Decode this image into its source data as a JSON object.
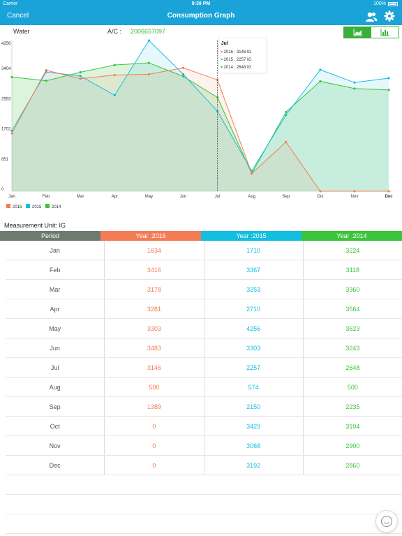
{
  "status": {
    "carrier": "Carrier",
    "time": "9:39 PM",
    "battery": "100%"
  },
  "nav": {
    "cancel": "Cancel",
    "title": "Consumption Graph"
  },
  "info": {
    "kind": "Water",
    "ac_label": "A/C :",
    "ac_value": "2006657097"
  },
  "colors": {
    "nav": "#1aa3d9",
    "y2016": "#f47c54",
    "y2015": "#13bfe0",
    "y2014": "#3cc43c",
    "period": "#6f7a6f"
  },
  "chart_data": {
    "type": "area",
    "categories": [
      "Jan",
      "Feb",
      "Mar",
      "Apr",
      "May",
      "Jun",
      "Jul",
      "Aug",
      "Sep",
      "Oct",
      "Nov",
      "Dec"
    ],
    "yticks": [
      "0",
      "851",
      "1702",
      "2553",
      "3404",
      "4256"
    ],
    "ylim": [
      0,
      4256
    ],
    "series": [
      {
        "name": "2016",
        "values": [
          1634,
          3416,
          3178,
          3281,
          3303,
          3483,
          3146,
          500,
          1389,
          0,
          0,
          0
        ]
      },
      {
        "name": "2015",
        "values": [
          1710,
          3367,
          3253,
          2710,
          4256,
          3303,
          2257,
          574,
          2150,
          3429,
          3068,
          3192
        ]
      },
      {
        "name": "2014",
        "values": [
          3224,
          3118,
          3360,
          3564,
          3623,
          3243,
          2648,
          500,
          2235,
          3104,
          2900,
          2860
        ]
      }
    ],
    "tooltip": {
      "title": "Jul",
      "lines": [
        "2016 : 3146 IG",
        "2015 : 2257 IG",
        "2014 : 2648 IG"
      ]
    },
    "legend": [
      "2016",
      "2015",
      "2014"
    ]
  },
  "table": {
    "unit": "Measurement Unit: IG",
    "headers": [
      "Period",
      "Year :2016",
      "Year :2015",
      "Year :2014"
    ],
    "rows": [
      [
        "Jan",
        "1634",
        "1710",
        "3224"
      ],
      [
        "Feb",
        "3416",
        "3367",
        "3118"
      ],
      [
        "Mar",
        "3178",
        "3253",
        "3360"
      ],
      [
        "Apr",
        "3281",
        "2710",
        "3564"
      ],
      [
        "May",
        "3303",
        "4256",
        "3623"
      ],
      [
        "Jun",
        "3483",
        "3303",
        "3243"
      ],
      [
        "Jul",
        "3146",
        "2257",
        "2648"
      ],
      [
        "Aug",
        "500",
        "574",
        "500"
      ],
      [
        "Sep",
        "1389",
        "2150",
        "2235"
      ],
      [
        "Oct",
        "0",
        "3429",
        "3104"
      ],
      [
        "Nov",
        "0",
        "3068",
        "2900"
      ],
      [
        "Dec",
        "0",
        "3192",
        "2860"
      ]
    ]
  }
}
